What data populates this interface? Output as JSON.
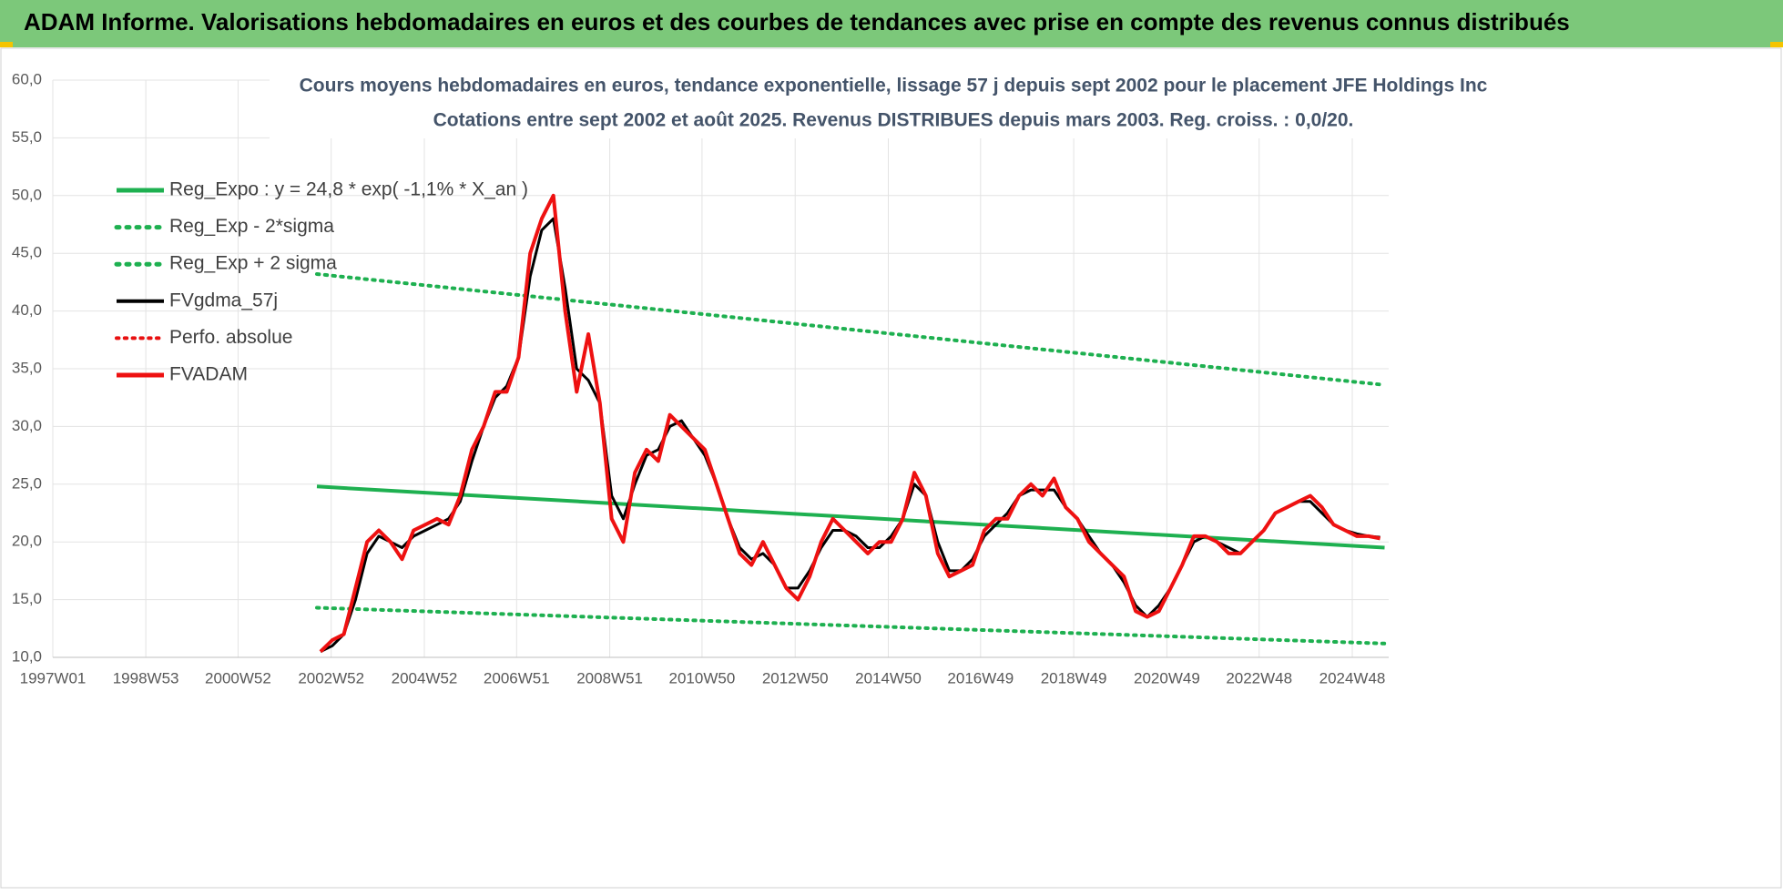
{
  "header": {
    "title": "ADAM Informe. Valorisations hebdomadaires en euros et des courbes de tendances avec prise en compte des revenus connus distribués"
  },
  "chart_data": {
    "type": "line",
    "title": "Cours moyens hebdomadaires en euros, tendance exponentielle, lissage 57 j depuis sept 2002 pour le placement JFE Holdings Inc",
    "subtitle": "Cotations entre sept 2002 et août 2025. Revenus DISTRIBUES depuis mars 2003.  Reg. croiss. : 0,0/20.",
    "ylim": [
      10,
      60
    ],
    "yticks": [
      {
        "value": 10,
        "label": "10,0"
      },
      {
        "value": 15,
        "label": "15,0"
      },
      {
        "value": 20,
        "label": "20,0"
      },
      {
        "value": 25,
        "label": "25,0"
      },
      {
        "value": 30,
        "label": "30,0"
      },
      {
        "value": 35,
        "label": "35,0"
      },
      {
        "value": 40,
        "label": "40,0"
      },
      {
        "value": 45,
        "label": "45,0"
      },
      {
        "value": 50,
        "label": "50,0"
      },
      {
        "value": 55,
        "label": "55,0"
      },
      {
        "value": 60,
        "label": "60,0"
      }
    ],
    "xticks": [
      "1997W01",
      "1998W53",
      "2000W52",
      "2002W52",
      "2004W52",
      "2006W51",
      "2008W51",
      "2010W50",
      "2012W50",
      "2014W50",
      "2016W49",
      "2018W49",
      "2020W49",
      "2022W48",
      "2024W48"
    ],
    "grid": true,
    "x": [
      "2002W40",
      "2003W01",
      "2003W14",
      "2003W27",
      "2003W40",
      "2004W01",
      "2004W14",
      "2004W27",
      "2004W40",
      "2005W01",
      "2005W14",
      "2005W27",
      "2005W40",
      "2006W01",
      "2006W14",
      "2006W27",
      "2006W40",
      "2007W01",
      "2007W14",
      "2007W27",
      "2007W40",
      "2008W01",
      "2008W14",
      "2008W27",
      "2008W40",
      "2009W01",
      "2009W14",
      "2009W27",
      "2009W40",
      "2010W01",
      "2010W14",
      "2010W27",
      "2010W40",
      "2011W01",
      "2011W14",
      "2011W27",
      "2011W40",
      "2012W01",
      "2012W14",
      "2012W27",
      "2012W40",
      "2013W01",
      "2013W14",
      "2013W27",
      "2013W40",
      "2014W01",
      "2014W14",
      "2014W27",
      "2014W40",
      "2015W01",
      "2015W14",
      "2015W27",
      "2015W40",
      "2016W01",
      "2016W14",
      "2016W27",
      "2016W40",
      "2017W01",
      "2017W14",
      "2017W27",
      "2017W40",
      "2018W01",
      "2018W14",
      "2018W27",
      "2018W40",
      "2019W01",
      "2019W14",
      "2019W27",
      "2019W40",
      "2020W01",
      "2020W14",
      "2020W27",
      "2020W40",
      "2021W01",
      "2021W14",
      "2021W27",
      "2021W40",
      "2022W01",
      "2022W14",
      "2022W27",
      "2022W40",
      "2023W01",
      "2023W14",
      "2023W27",
      "2023W40",
      "2024W01",
      "2024W14",
      "2024W27",
      "2024W40",
      "2025W01",
      "2025W14",
      "2025W27"
    ],
    "series": [
      {
        "name": "Reg_Expo : y = 24,8 * exp( -1,1% *  X_an )",
        "color": "#1eb050",
        "dash": "solid",
        "width": 4,
        "x": [
          "2002W36",
          "2025W32"
        ],
        "values": [
          24.8,
          19.5
        ]
      },
      {
        "name": "Reg_Exp - 2*sigma",
        "color": "#1eb050",
        "dash": "dotted",
        "width": 4,
        "x": [
          "2002W36",
          "2025W32"
        ],
        "values": [
          14.3,
          11.2
        ]
      },
      {
        "name": "Reg_Exp + 2 sigma",
        "color": "#1eb050",
        "dash": "dotted",
        "width": 4,
        "x": [
          "2002W36",
          "2025W32"
        ],
        "values": [
          43.2,
          33.6
        ]
      },
      {
        "name": "FVgdma_57j",
        "color": "#000000",
        "dash": "solid",
        "width": 3,
        "values": [
          10.5,
          11,
          12,
          15,
          19,
          20.5,
          20,
          19.5,
          20.5,
          21,
          21.5,
          22,
          23.5,
          27,
          30,
          32.5,
          33.5,
          36,
          43,
          47,
          48,
          42,
          35,
          34,
          32,
          24,
          22,
          25,
          27.5,
          28,
          30,
          30.5,
          29,
          27.5,
          25,
          22,
          19.5,
          18.5,
          19,
          18,
          16,
          16,
          17.5,
          19.5,
          21,
          21,
          20.5,
          19.5,
          19.5,
          20.5,
          22,
          25,
          24,
          20,
          17.5,
          17.5,
          18.5,
          20.5,
          21.5,
          22.5,
          24,
          24.5,
          24.5,
          24.5,
          23,
          22,
          20.5,
          19,
          18,
          16.5,
          14.5,
          13.5,
          14.5,
          16,
          18,
          20,
          20.5,
          20,
          19.5,
          19,
          20,
          21,
          22.5,
          23,
          23.5,
          23.5,
          22.5,
          21.5,
          21,
          20.7,
          20.5,
          20.4
        ]
      },
      {
        "name": "Perfo. absolue",
        "color": "#e81010",
        "dash": "dotted",
        "width": 3
      },
      {
        "name": "FVADAM",
        "color": "#ee1111",
        "dash": "solid",
        "width": 4,
        "values": [
          10.5,
          11.5,
          12,
          16,
          20,
          21,
          20,
          18.5,
          21,
          21.5,
          22,
          21.5,
          24,
          28,
          30,
          33,
          33,
          36,
          45,
          48,
          50,
          40,
          33,
          38,
          32,
          22,
          20,
          26,
          28,
          27,
          31,
          30,
          29,
          28,
          25,
          22,
          19,
          18,
          20,
          18,
          16,
          15,
          17,
          20,
          22,
          21,
          20,
          19,
          20,
          20,
          22,
          26,
          24,
          19,
          17,
          17.5,
          18,
          21,
          22,
          22,
          24,
          25,
          24,
          25.5,
          23,
          22,
          20,
          19,
          18,
          17,
          14,
          13.5,
          14,
          16,
          18,
          20.5,
          20.5,
          20,
          19,
          19,
          20,
          21,
          22.5,
          23,
          23.5,
          24,
          23,
          21.5,
          21,
          20.5,
          20.5,
          20.3
        ]
      }
    ]
  }
}
